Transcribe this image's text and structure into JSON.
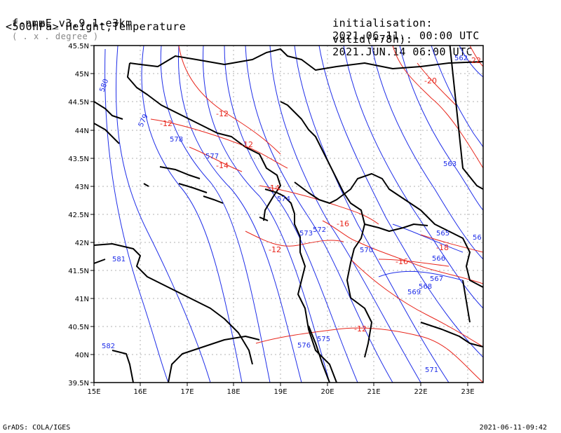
{
  "header": {
    "model": "f-nmmE_v3.9.1-e3km",
    "model_sub": "( . x . degree )",
    "field": "<500hPa> Height,Temperature",
    "init_label": "initialisation:",
    "init_value": "2021.06.11.  00:00 UTC",
    "valid_label": "valid(+78h):",
    "valid_value": "2021.JUN.14 06:00 UTC"
  },
  "footer": {
    "left": "GrADS: COLA/IGES",
    "right": "2021-06-11-09:42"
  },
  "map": {
    "region": "Adriatic / Western Balkans",
    "lat_range": [
      39.5,
      45.5
    ],
    "lon_range": [
      15,
      23.3
    ],
    "lat_ticks": [
      "45.5N",
      "45N",
      "44.5N",
      "44N",
      "43.5N",
      "43N",
      "42.5N",
      "42N",
      "41.5N",
      "41N",
      "40.5N",
      "40N",
      "39.5N"
    ],
    "lon_ticks": [
      "15E",
      "16E",
      "17E",
      "18E",
      "19E",
      "20E",
      "21E",
      "22E",
      "23E"
    ],
    "colors": {
      "height": "#1f2ee8",
      "temperature": "#e8261c",
      "border": "#000000",
      "grid": "#aaaaaa"
    },
    "height_labels": [
      "580",
      "579",
      "578",
      "577",
      "574",
      "573",
      "572",
      "570",
      "571",
      "581",
      "582",
      "575",
      "576",
      "563",
      "562",
      "566",
      "567",
      "568",
      "569",
      "565",
      "56"
    ],
    "temp_labels": [
      "-22",
      "-20",
      "-12",
      "-12",
      "-12",
      "-14",
      "-14",
      "-16",
      "-12",
      "-16",
      "-18",
      "-12"
    ]
  }
}
